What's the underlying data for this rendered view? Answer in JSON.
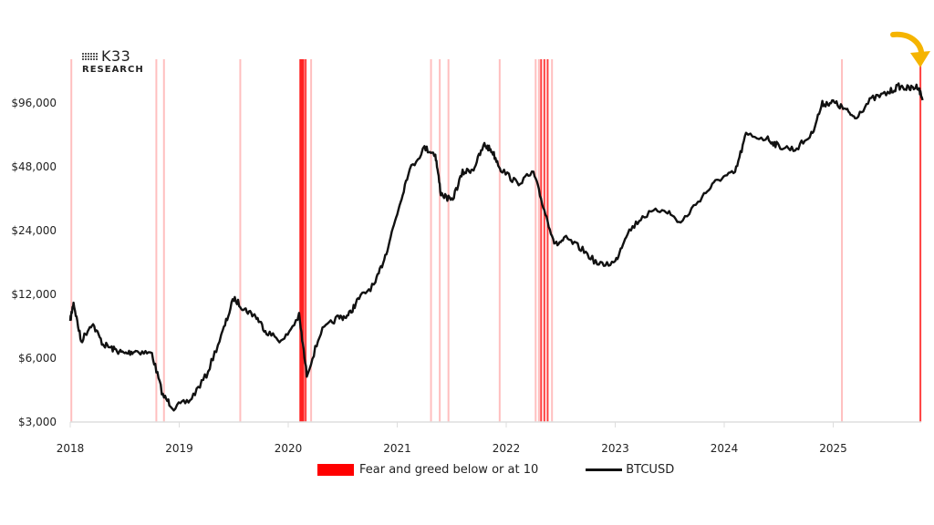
{
  "logo": {
    "brand": "K33",
    "sub": "RESEARCH"
  },
  "legend": {
    "fear_label": "Fear and greed below or at 10",
    "btc_label": "BTCUSD"
  },
  "colors": {
    "fear": "#ff0000",
    "btc": "#111111",
    "arrow": "#f5b400"
  },
  "chart_data": {
    "type": "line",
    "title": "",
    "xlabel": "",
    "ylabel": "",
    "yscale": "log2",
    "ylim": [
      3000,
      140000
    ],
    "xlim": [
      2018.0,
      2025.82
    ],
    "x_ticks": [
      {
        "v": 2018,
        "label": "2018"
      },
      {
        "v": 2019,
        "label": "2019"
      },
      {
        "v": 2020,
        "label": "2020"
      },
      {
        "v": 2021,
        "label": "2021"
      },
      {
        "v": 2022,
        "label": "2022"
      },
      {
        "v": 2023,
        "label": "2023"
      },
      {
        "v": 2024,
        "label": "2024"
      },
      {
        "v": 2025,
        "label": "2025"
      }
    ],
    "y_ticks": [
      {
        "v": 3000,
        "label": "$3,000"
      },
      {
        "v": 6000,
        "label": "$6,000"
      },
      {
        "v": 12000,
        "label": "$12,000"
      },
      {
        "v": 24000,
        "label": "$24,000"
      },
      {
        "v": 48000,
        "label": "$48,000"
      },
      {
        "v": 96000,
        "label": "$96,000"
      }
    ],
    "legend_position": "bottom-center",
    "series": [
      {
        "name": "BTCUSD",
        "x": [
          2018.0,
          2018.03,
          2018.1,
          2018.2,
          2018.3,
          2018.4,
          2018.5,
          2018.6,
          2018.75,
          2018.85,
          2018.95,
          2019.1,
          2019.25,
          2019.4,
          2019.5,
          2019.6,
          2019.7,
          2019.8,
          2019.95,
          2020.1,
          2020.17,
          2020.3,
          2020.45,
          2020.55,
          2020.65,
          2020.8,
          2020.9,
          2021.0,
          2021.1,
          2021.25,
          2021.35,
          2021.4,
          2021.5,
          2021.6,
          2021.7,
          2021.8,
          2021.87,
          2021.95,
          2022.1,
          2022.25,
          2022.35,
          2022.45,
          2022.55,
          2022.7,
          2022.85,
          2023.0,
          2023.1,
          2023.25,
          2023.45,
          2023.6,
          2023.8,
          2023.95,
          2024.1,
          2024.2,
          2024.4,
          2024.5,
          2024.65,
          2024.8,
          2024.9,
          2025.0,
          2025.1,
          2025.2,
          2025.35,
          2025.5,
          2025.6,
          2025.7,
          2025.78,
          2025.82
        ],
        "values": [
          9000,
          11000,
          7200,
          8800,
          7000,
          6600,
          6300,
          6500,
          6300,
          4000,
          3500,
          3800,
          5000,
          8000,
          11500,
          10200,
          9500,
          8000,
          7200,
          9500,
          5000,
          8000,
          9300,
          9500,
          11500,
          13500,
          19000,
          29000,
          45000,
          59000,
          55000,
          36000,
          33000,
          45000,
          47000,
          61000,
          57000,
          47000,
          40000,
          45000,
          30000,
          20500,
          22000,
          19500,
          16500,
          17000,
          23000,
          28000,
          30500,
          26000,
          35000,
          42000,
          45000,
          68000,
          65000,
          60000,
          58000,
          68000,
          95000,
          97000,
          90000,
          82000,
          100000,
          107000,
          115000,
          112000,
          115000,
          99000
        ]
      },
      {
        "name": "Fear and greed below or at 10",
        "type": "vspan",
        "x": [
          2018.01,
          2018.79,
          2018.86,
          2019.56,
          2020.11,
          2020.12,
          2020.13,
          2020.14,
          2020.16,
          2020.21,
          2021.31,
          2021.39,
          2021.47,
          2021.94,
          2022.27,
          2022.3,
          2022.32,
          2022.35,
          2022.38,
          2022.42,
          2025.08,
          2025.8
        ]
      }
    ]
  }
}
